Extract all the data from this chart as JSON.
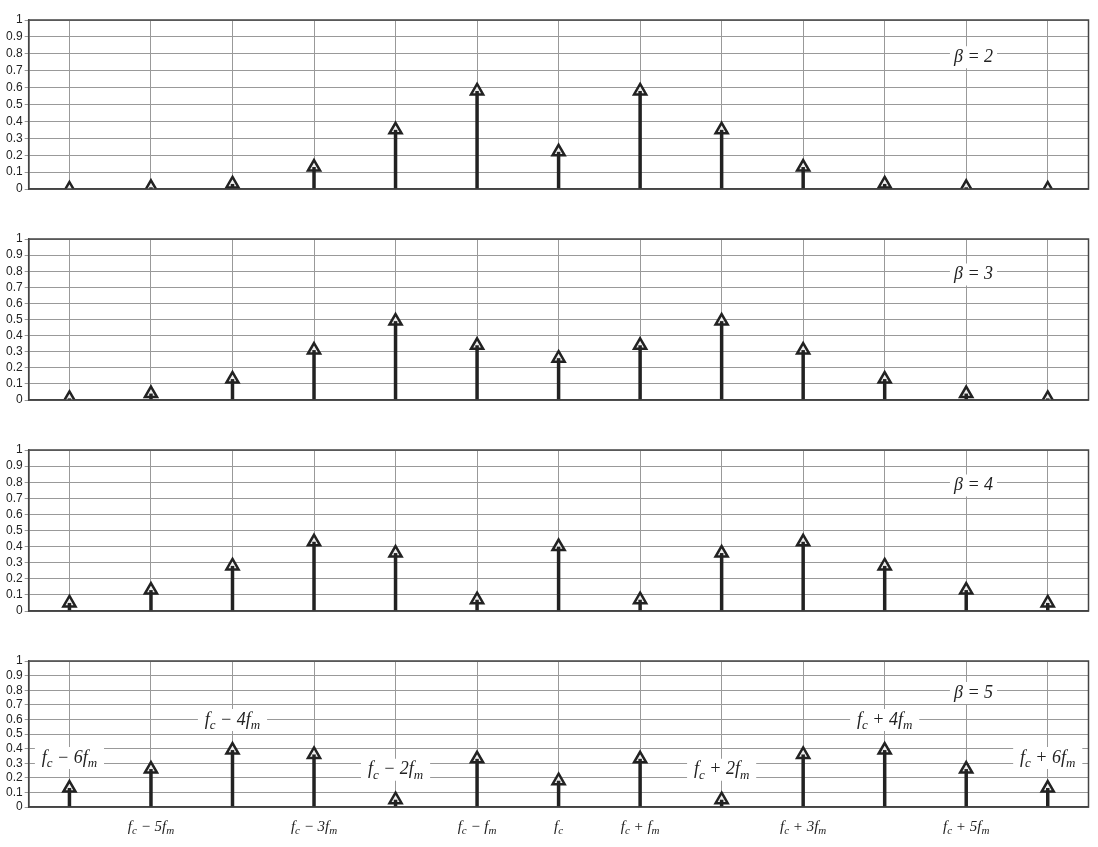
{
  "chart_data": [
    {
      "type": "lollipop",
      "x": [
        -6,
        -5,
        -4,
        -3,
        -2,
        -1,
        0,
        1,
        2,
        3,
        4,
        5,
        6
      ],
      "values": [
        0.0,
        0.01,
        0.03,
        0.13,
        0.35,
        0.58,
        0.22,
        0.58,
        0.35,
        0.13,
        0.03,
        0.01,
        0.0
      ],
      "color": "#222222",
      "marker": "triangle",
      "xlim": [
        -6.5,
        6.5
      ],
      "xticks": [
        -6,
        -5,
        -4,
        -3,
        -2,
        -1,
        0,
        1,
        2,
        3,
        4,
        5,
        6
      ],
      "ylim": [
        0,
        1
      ],
      "yticks": [
        0,
        0.1,
        0.2,
        0.3,
        0.4,
        0.5,
        0.6,
        0.7,
        0.8,
        0.9,
        1
      ],
      "grid": true,
      "tick_labels": "y",
      "annotations": [
        "β = 2"
      ]
    },
    {
      "type": "lollipop",
      "x": [
        -6,
        -5,
        -4,
        -3,
        -2,
        -1,
        0,
        1,
        2,
        3,
        4,
        5,
        6
      ],
      "values": [
        0.01,
        0.04,
        0.13,
        0.31,
        0.49,
        0.34,
        0.26,
        0.34,
        0.49,
        0.31,
        0.13,
        0.04,
        0.01
      ],
      "color": "#222222",
      "marker": "triangle",
      "xlim": [
        -6.5,
        6.5
      ],
      "xticks": [
        -6,
        -5,
        -4,
        -3,
        -2,
        -1,
        0,
        1,
        2,
        3,
        4,
        5,
        6
      ],
      "ylim": [
        0,
        1
      ],
      "yticks": [
        0,
        0.1,
        0.2,
        0.3,
        0.4,
        0.5,
        0.6,
        0.7,
        0.8,
        0.9,
        1
      ],
      "grid": true,
      "tick_labels": "y",
      "annotations": [
        "β = 3"
      ]
    },
    {
      "type": "lollipop",
      "x": [
        -6,
        -5,
        -4,
        -3,
        -2,
        -1,
        0,
        1,
        2,
        3,
        4,
        5,
        6
      ],
      "values": [
        0.05,
        0.13,
        0.28,
        0.43,
        0.36,
        0.07,
        0.4,
        0.07,
        0.36,
        0.43,
        0.28,
        0.13,
        0.05
      ],
      "color": "#222222",
      "marker": "triangle",
      "xlim": [
        -6.5,
        6.5
      ],
      "xticks": [
        -6,
        -5,
        -4,
        -3,
        -2,
        -1,
        0,
        1,
        2,
        3,
        4,
        5,
        6
      ],
      "ylim": [
        0,
        1
      ],
      "yticks": [
        0,
        0.1,
        0.2,
        0.3,
        0.4,
        0.5,
        0.6,
        0.7,
        0.8,
        0.9,
        1
      ],
      "grid": true,
      "tick_labels": "y",
      "annotations": [
        "β = 4"
      ]
    },
    {
      "type": "lollipop",
      "x": [
        -6,
        -5,
        -4,
        -3,
        -2,
        -1,
        0,
        1,
        2,
        3,
        4,
        5,
        6
      ],
      "values": [
        0.13,
        0.26,
        0.39,
        0.36,
        0.05,
        0.33,
        0.18,
        0.33,
        0.05,
        0.36,
        0.39,
        0.26,
        0.13
      ],
      "color": "#222222",
      "marker": "triangle",
      "xlim": [
        -6.5,
        6.5
      ],
      "xticks": [
        {
          "value": -6,
          "label": null
        },
        {
          "value": -5,
          "label": "f$_{c}$ − 5f$_{m}$"
        },
        {
          "value": -4,
          "label": null
        },
        {
          "value": -3,
          "label": "f$_{c}$ − 3f$_{m}$"
        },
        {
          "value": -2,
          "label": null
        },
        {
          "value": -1,
          "label": "f$_{c}$ − f$_{m}$"
        },
        {
          "value": 0,
          "label": "f$_{c}$"
        },
        {
          "value": 1,
          "label": "f$_{c}$ + f$_{m}$"
        },
        {
          "value": 2,
          "label": null
        },
        {
          "value": 3,
          "label": "f$_{c}$ + 3f$_{m}$"
        },
        {
          "value": 4,
          "label": null
        },
        {
          "value": 5,
          "label": "f$_{c}$ + 5f$_{m}$"
        },
        {
          "value": 6,
          "label": null
        }
      ],
      "ylim": [
        0,
        1
      ],
      "yticks": [
        0,
        0.1,
        0.2,
        0.3,
        0.4,
        0.5,
        0.6,
        0.7,
        0.8,
        0.9,
        1
      ],
      "grid": true,
      "annotations": [
        "β = 5",
        {
          "text": "f$_{c}$ − 6f$_{m}$",
          "x": -6,
          "y": 0.13
        },
        {
          "text": "f$_{c}$ − 4f$_{m}$",
          "x": -4,
          "y": 0.39
        },
        {
          "text": "f$_{c}$ − 2f$_{m}$",
          "x": -2,
          "y": 0.05
        },
        {
          "text": "f$_{c}$ + 2f$_{m}$",
          "x": 2,
          "y": 0.05
        },
        {
          "text": "f$_{c}$ + 4f$_{m}$",
          "x": 4,
          "y": 0.39
        },
        {
          "text": "f$_{c}$ + 6f$_{m}$",
          "x": 6,
          "y": 0.13
        }
      ]
    }
  ]
}
